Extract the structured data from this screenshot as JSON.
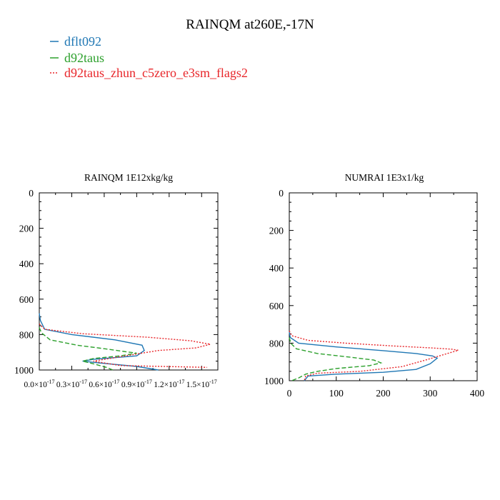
{
  "chart_data": {
    "type": "line",
    "title": "RAINQM at260E,-17N",
    "legend": [
      {
        "name": "dflt092",
        "color": "#1f77b4",
        "dash": "solid"
      },
      {
        "name": "d92taus",
        "color": "#2ca02c",
        "dash": "dashed"
      },
      {
        "name": "d92taus_zhun_c5zero_e3sm_flags2",
        "color": "#e8262a",
        "dash": "dotted"
      }
    ],
    "panels": [
      {
        "title": "RAINQM  1E12xkg/kg",
        "xlim": [
          0,
          1.65e-17
        ],
        "ylim": [
          1000,
          0
        ],
        "yticks": [
          0,
          200,
          400,
          600,
          800,
          1000
        ],
        "ytick_labels": [
          "0",
          "200",
          "400",
          "600",
          "800",
          "1000"
        ],
        "xticks": [
          0,
          3e-18,
          6e-18,
          9e-18,
          1.2e-17,
          1.5e-17
        ],
        "xtick_labels": [
          {
            "base": "0.0×10",
            "exp": "-17"
          },
          {
            "base": "0.3×10",
            "exp": "-17"
          },
          {
            "base": "0.6×10",
            "exp": "-17"
          },
          {
            "base": "0.9×10",
            "exp": "-17"
          },
          {
            "base": "1.2×10",
            "exp": "-17"
          },
          {
            "base": "1.5×10",
            "exp": "-17"
          }
        ],
        "series": [
          {
            "name": "dflt092",
            "x": [
              0,
              1e-19,
              5e-19,
              3e-18,
              7e-18,
              9.5e-18,
              9.7e-18,
              9e-18,
              5e-18,
              4e-18,
              5.5e-18,
              9e-18,
              1.1e-17
            ],
            "y": [
              680,
              720,
              770,
              800,
              830,
              860,
              890,
              920,
              940,
              950,
              960,
              980,
              1000
            ]
          },
          {
            "name": "d92taus",
            "x": [
              0,
              2e-19,
              1e-18,
              3.5e-18,
              6e-18,
              7.8e-18,
              9e-18,
              7.5e-18,
              5e-18,
              4e-18,
              5e-18,
              6.2e-18,
              6.8e-18
            ],
            "y": [
              760,
              790,
              830,
              860,
              880,
              895,
              905,
              920,
              935,
              950,
              965,
              985,
              1000
            ]
          },
          {
            "name": "d92taus_zhun_c5zero_e3sm_flags2",
            "x": [
              0,
              5e-19,
              4e-18,
              1e-17,
              1.4e-17,
              1.58e-17,
              1.45e-17,
              1.1e-17,
              9.5e-18,
              7.5e-18,
              5e-18,
              7.5e-18,
              1.55e-17
            ],
            "y": [
              740,
              770,
              795,
              815,
              835,
              855,
              875,
              890,
              905,
              925,
              950,
              975,
              985
            ]
          }
        ]
      },
      {
        "title": "NUMRAI  1E3x1/kg",
        "xlim": [
          0,
          400
        ],
        "ylim": [
          1000,
          0
        ],
        "yticks": [
          0,
          200,
          400,
          600,
          800,
          1000
        ],
        "ytick_labels": [
          "0",
          "200",
          "400",
          "600",
          "800",
          "1000"
        ],
        "xticks": [
          0,
          100,
          200,
          300,
          400
        ],
        "xtick_labels": [
          "0",
          "100",
          "200",
          "300",
          "400"
        ],
        "series": [
          {
            "name": "dflt092",
            "x": [
              0,
              2,
              20,
              100,
              200,
              270,
              305,
              315,
              300,
              270,
              200,
              100,
              40,
              32
            ],
            "y": [
              740,
              770,
              800,
              820,
              840,
              855,
              868,
              880,
              910,
              940,
              955,
              965,
              975,
              1000
            ]
          },
          {
            "name": "d92taus",
            "x": [
              0,
              3,
              15,
              60,
              130,
              180,
              195,
              170,
              100,
              60,
              35,
              20,
              5
            ],
            "y": [
              770,
              800,
              830,
              855,
              875,
              890,
              905,
              920,
              935,
              950,
              965,
              985,
              1000
            ]
          },
          {
            "name": "d92taus_zhun_c5zero_e3sm_flags2",
            "x": [
              0,
              5,
              40,
              120,
              220,
              300,
              345,
              360,
              330,
              290,
              240,
              150,
              60,
              35,
              32
            ],
            "y": [
              735,
              760,
              785,
              800,
              815,
              825,
              832,
              838,
              860,
              890,
              925,
              950,
              960,
              975,
              1000
            ]
          }
        ]
      }
    ]
  }
}
